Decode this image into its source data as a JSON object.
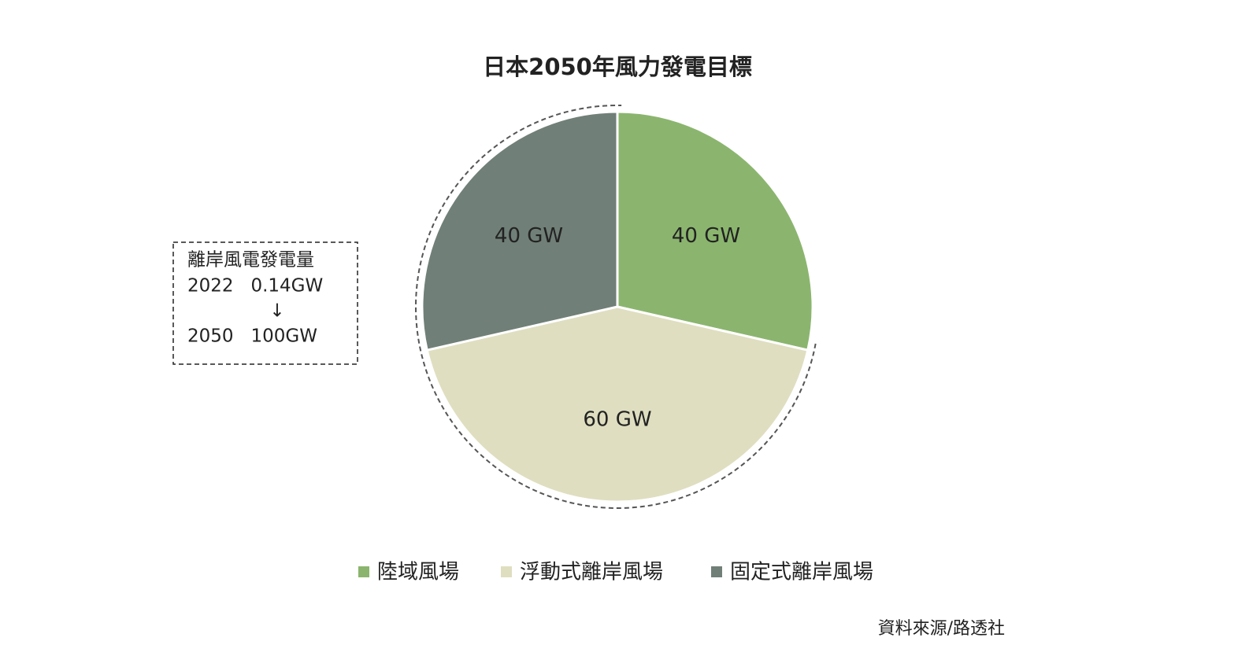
{
  "chart_data": {
    "type": "pie",
    "title": "日本2050年風力發電目標",
    "categories": [
      "陸域風場",
      "浮動式離岸風場",
      "固定式離岸風場"
    ],
    "values": [
      40,
      60,
      40
    ],
    "value_labels": [
      "40 GW",
      "60 GW",
      "40 GW"
    ],
    "colors": [
      "#8bb56e",
      "#dfdec0",
      "#707f77"
    ],
    "legend": "bottom",
    "annotation": [
      "離岸風電發電量",
      "2022   0.14GW",
      "↓",
      "2050   100GW"
    ],
    "source": "資料來源/路透社"
  }
}
